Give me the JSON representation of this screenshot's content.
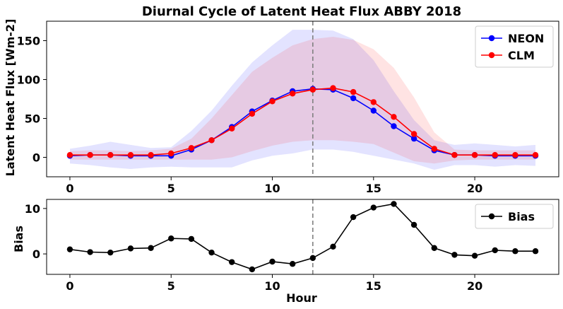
{
  "chart_data": [
    {
      "type": "line",
      "title": "Diurnal Cycle of Latent Heat Flux ABBY 2018",
      "xlabel": "",
      "ylabel": "Latent Heat Flux [Wm-2]",
      "xlim": [
        -1.15,
        24.15
      ],
      "ylim": [
        -25,
        175
      ],
      "xticks": [
        0,
        5,
        10,
        15,
        20
      ],
      "yticks": [
        0,
        50,
        100,
        150
      ],
      "vline_x": 12,
      "legend_position": "top-right",
      "x": [
        0,
        1,
        2,
        3,
        4,
        5,
        6,
        7,
        8,
        9,
        10,
        11,
        12,
        13,
        14,
        15,
        16,
        17,
        18,
        19,
        20,
        21,
        22,
        23
      ],
      "series": [
        {
          "name": "NEON",
          "color": "#0000ff",
          "values": [
            2,
            3,
            3,
            2,
            2,
            2,
            10,
            22,
            39,
            59,
            73,
            85,
            88,
            87,
            76,
            60,
            40,
            24,
            9,
            3,
            3,
            2,
            2,
            2
          ],
          "band_upper": [
            11,
            15,
            20,
            16,
            12,
            13,
            34,
            60,
            92,
            122,
            144,
            164,
            164,
            163,
            152,
            125,
            85,
            48,
            22,
            16,
            18,
            16,
            14,
            16
          ],
          "band_lower": [
            -8,
            -10,
            -13,
            -15,
            -13,
            -12,
            -13,
            -13,
            -13,
            -4,
            2,
            5,
            10,
            10,
            7,
            2,
            -3,
            -8,
            -16,
            -10,
            -10,
            -12,
            -10,
            -11
          ]
        },
        {
          "name": "CLM",
          "color": "#ff0000",
          "values": [
            3,
            3,
            3,
            3,
            3,
            5,
            12,
            22,
            37,
            56,
            72,
            82,
            87,
            89,
            84,
            71,
            52,
            30,
            11,
            3,
            3,
            3,
            3,
            3
          ],
          "band_upper": [
            8,
            9,
            9,
            8,
            9,
            11,
            24,
            50,
            80,
            110,
            128,
            144,
            152,
            155,
            151,
            139,
            115,
            77,
            32,
            10,
            9,
            9,
            9,
            9
          ],
          "band_lower": [
            -3,
            -3,
            -3,
            -3,
            -3,
            -3,
            -3,
            -3,
            0,
            8,
            15,
            20,
            22,
            22,
            20,
            17,
            6,
            -5,
            -8,
            -4,
            -3,
            -3,
            -3,
            -3
          ]
        }
      ]
    },
    {
      "type": "line",
      "title": "",
      "xlabel": "Hour",
      "ylabel": "Bias",
      "xlim": [
        -1.15,
        24.15
      ],
      "ylim": [
        -4.5,
        12
      ],
      "xticks": [
        0,
        5,
        10,
        15,
        20
      ],
      "yticks": [
        0,
        10
      ],
      "vline_x": 12,
      "legend_position": "top-right",
      "x": [
        0,
        1,
        2,
        3,
        4,
        5,
        6,
        7,
        8,
        9,
        10,
        11,
        12,
        13,
        14,
        15,
        16,
        17,
        18,
        19,
        20,
        21,
        22,
        23
      ],
      "series": [
        {
          "name": "Bias",
          "color": "#000000",
          "values": [
            1.0,
            0.4,
            0.3,
            1.2,
            1.3,
            3.4,
            3.3,
            0.3,
            -1.8,
            -3.4,
            -1.7,
            -2.2,
            -0.9,
            1.6,
            8.1,
            10.2,
            11.0,
            6.4,
            1.3,
            -0.2,
            -0.4,
            0.8,
            0.6,
            0.6
          ]
        }
      ]
    }
  ]
}
